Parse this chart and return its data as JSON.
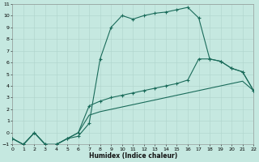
{
  "xlabel": "Humidex (Indice chaleur)",
  "xlim": [
    0,
    22
  ],
  "ylim": [
    -1,
    11
  ],
  "xticks": [
    0,
    1,
    2,
    3,
    4,
    5,
    6,
    7,
    8,
    9,
    10,
    11,
    12,
    13,
    14,
    15,
    16,
    17,
    18,
    19,
    20,
    21,
    22
  ],
  "yticks": [
    -1,
    0,
    1,
    2,
    3,
    4,
    5,
    6,
    7,
    8,
    9,
    10,
    11
  ],
  "bg_color": "#c5e8e0",
  "line_color": "#1a6b5a",
  "grid_color": "#afd4cc",
  "curve1_x": [
    0,
    1,
    2,
    3,
    4,
    5,
    6,
    7,
    8,
    9,
    10,
    11,
    12,
    13,
    14,
    15,
    16,
    17,
    18,
    19,
    20,
    21,
    22
  ],
  "curve1_y": [
    -0.5,
    -1.0,
    0.0,
    -1.0,
    -1.0,
    -0.5,
    -0.3,
    0.8,
    6.3,
    9.0,
    10.0,
    9.7,
    10.0,
    10.2,
    10.3,
    10.5,
    10.7,
    9.8,
    6.3,
    6.1,
    5.5,
    5.2,
    3.6
  ],
  "curve2_x": [
    0,
    1,
    2,
    3,
    4,
    5,
    6,
    7,
    8,
    9,
    10,
    11,
    12,
    13,
    14,
    15,
    16,
    17,
    18,
    19,
    20,
    21,
    22
  ],
  "curve2_y": [
    -0.5,
    -1.0,
    0.0,
    -1.0,
    -1.0,
    -0.5,
    0.0,
    2.3,
    2.7,
    3.0,
    3.2,
    3.4,
    3.6,
    3.8,
    4.0,
    4.2,
    4.5,
    6.3,
    6.3,
    6.1,
    5.5,
    5.2,
    3.6
  ],
  "curve3_x": [
    0,
    1,
    2,
    3,
    4,
    5,
    6,
    7,
    8,
    9,
    10,
    11,
    12,
    13,
    14,
    15,
    16,
    17,
    18,
    19,
    20,
    21,
    22
  ],
  "curve3_y": [
    -0.5,
    -1.0,
    0.0,
    -1.0,
    -1.0,
    -0.5,
    0.0,
    1.5,
    1.8,
    2.0,
    2.2,
    2.4,
    2.6,
    2.8,
    3.0,
    3.2,
    3.4,
    3.6,
    3.8,
    4.0,
    4.2,
    4.4,
    3.6
  ]
}
